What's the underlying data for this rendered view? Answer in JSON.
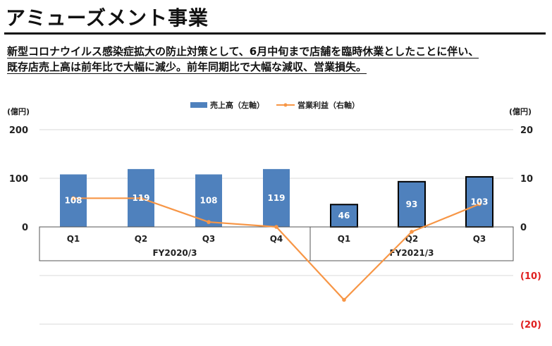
{
  "page": {
    "title": "アミューズメント事業",
    "subtitle_lines": [
      "新型コロナウイルス感染症拡大の防止対策として、6月中旬まで店舗を臨時休業としたことに伴い、",
      "既存店売上高は前年比で大幅に減少。前年同期比で大幅な減収、営業損失。"
    ]
  },
  "chart_data": {
    "type": "bar",
    "categories": [
      "Q1",
      "Q2",
      "Q3",
      "Q4",
      "Q1",
      "Q2",
      "Q3"
    ],
    "groups": [
      {
        "label": "FY2020/3",
        "categories": [
          "Q1",
          "Q2",
          "Q3",
          "Q4"
        ]
      },
      {
        "label": "FY2021/3",
        "categories": [
          "Q1",
          "Q2",
          "Q3"
        ]
      }
    ],
    "series": [
      {
        "name": "売上高（左軸）",
        "type": "bar",
        "axis": "left",
        "color": "#4f81bd",
        "values": [
          108,
          119,
          108,
          119,
          46,
          93,
          103
        ],
        "outlined": [
          false,
          false,
          false,
          false,
          true,
          true,
          true
        ]
      },
      {
        "name": "営業利益（右軸）",
        "type": "line",
        "axis": "right",
        "color": "#f79646",
        "values": [
          5.9,
          5.9,
          1.0,
          0.0,
          -15.0,
          -1.0,
          4.7
        ]
      }
    ],
    "left_axis": {
      "unit": "(億円)",
      "ylim": [
        -200,
        200
      ],
      "ticks": [
        "200",
        "100",
        "0"
      ]
    },
    "right_axis": {
      "unit": "(億円)",
      "ylim": [
        -20,
        20
      ],
      "ticks": [
        "20",
        "10",
        "0",
        "(10)",
        "(20)"
      ],
      "negative_color": "#e02020"
    },
    "legend_position": "top-center",
    "grid": true
  }
}
